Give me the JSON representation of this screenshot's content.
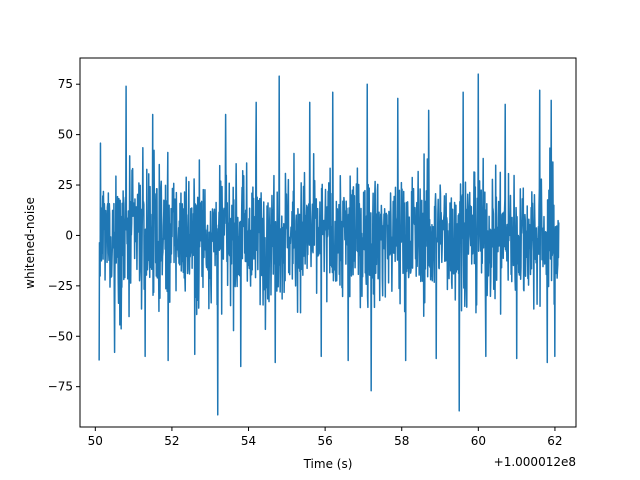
{
  "chart_data": {
    "type": "line",
    "title": "",
    "xlabel": "Time (s)",
    "ylabel": "whitened-noise",
    "x_offset_label": "+1.000012e8",
    "xlim": [
      49.6,
      62.55
    ],
    "ylim": [
      -95,
      88
    ],
    "x_ticks": [
      50,
      52,
      54,
      56,
      58,
      60,
      62
    ],
    "x_tick_labels": [
      "50",
      "52",
      "54",
      "56",
      "58",
      "60",
      "62"
    ],
    "y_ticks": [
      -75,
      -50,
      -25,
      0,
      25,
      50,
      75
    ],
    "y_tick_labels": [
      "−75",
      "−50",
      "−25",
      "0",
      "25",
      "50",
      "75"
    ],
    "grid": false,
    "line_color": "#1f77b4",
    "series": [
      {
        "x_range": [
          50.1,
          62.1
        ],
        "sample_count": 1400,
        "envelope_upper": 48,
        "envelope_lower": -48,
        "peaks": [
          [
            50.8,
            74
          ],
          [
            51.5,
            60
          ],
          [
            52.6,
            62
          ],
          [
            53.4,
            60
          ],
          [
            54.2,
            66
          ],
          [
            54.8,
            79
          ],
          [
            55.6,
            66
          ],
          [
            56.2,
            71
          ],
          [
            57.1,
            75
          ],
          [
            57.9,
            68
          ],
          [
            58.7,
            62
          ],
          [
            59.6,
            71
          ],
          [
            60.0,
            80
          ],
          [
            60.7,
            65
          ],
          [
            61.6,
            72
          ],
          [
            61.9,
            67
          ]
        ],
        "troughs": [
          [
            50.1,
            -62
          ],
          [
            50.5,
            -58
          ],
          [
            51.3,
            -60
          ],
          [
            51.9,
            -62
          ],
          [
            52.6,
            -59
          ],
          [
            53.2,
            -89
          ],
          [
            53.8,
            -65
          ],
          [
            54.7,
            -63
          ],
          [
            55.9,
            -60
          ],
          [
            56.6,
            -62
          ],
          [
            57.2,
            -77
          ],
          [
            58.1,
            -62
          ],
          [
            58.9,
            -61
          ],
          [
            59.5,
            -87
          ],
          [
            60.2,
            -60
          ],
          [
            61.0,
            -61
          ],
          [
            61.8,
            -63
          ],
          [
            62.0,
            -60
          ]
        ]
      }
    ]
  }
}
